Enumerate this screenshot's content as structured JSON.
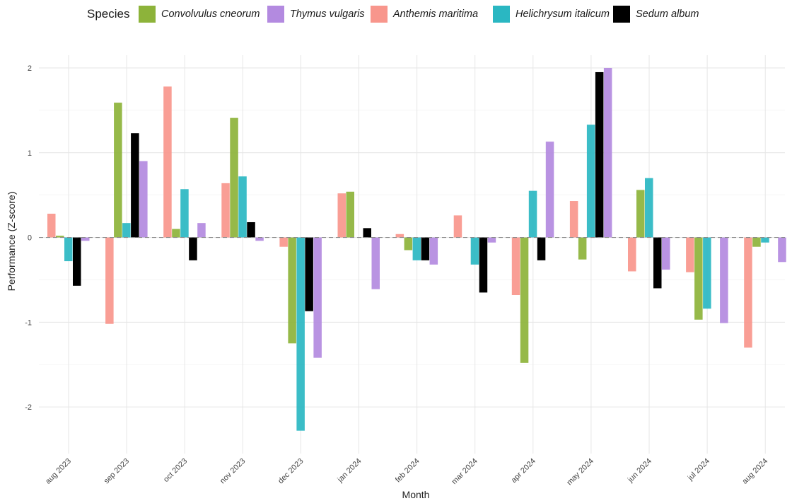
{
  "legend": {
    "title": "Species",
    "entries": [
      {
        "name": "Convolvulus cneorum",
        "color": "#8db33a"
      },
      {
        "name": "Thymus vulgaris",
        "color": "#b38ae0"
      },
      {
        "name": "Anthemis maritima",
        "color": "#f8968c"
      },
      {
        "name": "Helichrysum italicum",
        "color": "#2ab7c2"
      },
      {
        "name": "Sedum album",
        "color": "#000000"
      }
    ]
  },
  "chart_data": {
    "type": "bar",
    "title": "",
    "xlabel": "Month",
    "ylabel": "Performance (Z-score)",
    "ylim": [
      -2.55,
      2.15
    ],
    "yticks": [
      -2,
      -1,
      0,
      1,
      2
    ],
    "grid": true,
    "legend_position": "top",
    "categories": [
      "aug 2023",
      "sep 2023",
      "oct 2023",
      "nov 2023",
      "dec 2023",
      "jan 2024",
      "feb 2024",
      "mar 2024",
      "apr 2024",
      "may 2024",
      "jun 2024",
      "jul 2024",
      "aug 2024"
    ],
    "series": [
      {
        "name": "Anthemis maritima",
        "color": "#f8968c",
        "values": [
          0.28,
          -1.02,
          1.78,
          0.64,
          -0.11,
          0.52,
          0.04,
          0.26,
          -0.68,
          0.43,
          -0.4,
          -0.41,
          -1.3
        ]
      },
      {
        "name": "Convolvulus cneorum",
        "color": "#8db33a",
        "values": [
          0.02,
          1.59,
          0.1,
          1.41,
          -1.25,
          0.54,
          -0.15,
          null,
          -1.48,
          -0.26,
          0.56,
          -0.97,
          -0.11
        ]
      },
      {
        "name": "Helichrysum italicum",
        "color": "#2ab7c2",
        "values": [
          -0.28,
          0.17,
          0.57,
          0.72,
          -2.28,
          null,
          -0.27,
          -0.32,
          0.55,
          1.33,
          0.7,
          -0.84,
          -0.06
        ]
      },
      {
        "name": "Sedum album",
        "color": "#000000",
        "values": [
          -0.57,
          1.23,
          -0.27,
          0.18,
          -0.87,
          0.11,
          -0.27,
          -0.65,
          -0.27,
          1.95,
          -0.6,
          null,
          null
        ]
      },
      {
        "name": "Thymus vulgaris",
        "color": "#b38ae0",
        "values": [
          -0.04,
          0.9,
          0.17,
          -0.04,
          -1.42,
          -0.61,
          -0.32,
          -0.06,
          1.13,
          2.0,
          -0.38,
          -1.01,
          -0.29
        ]
      }
    ]
  }
}
